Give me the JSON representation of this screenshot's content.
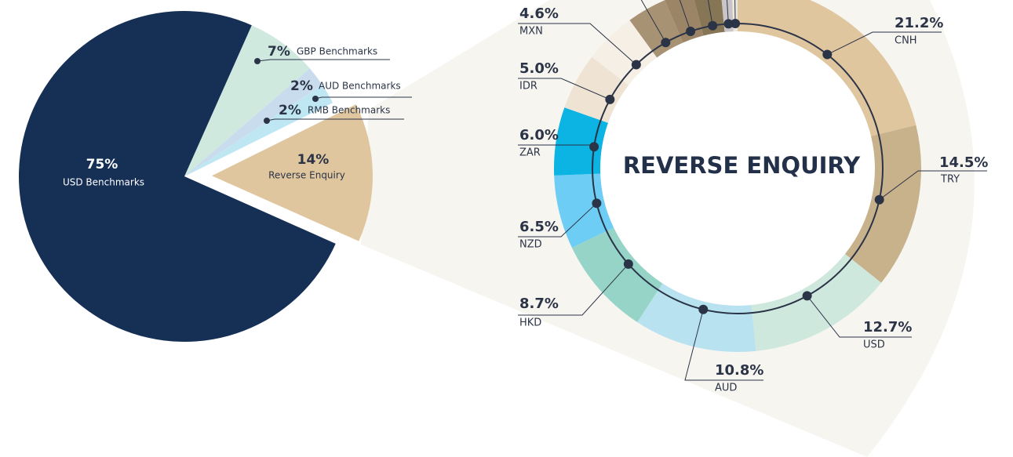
{
  "chart_data": [
    {
      "type": "pie",
      "categories": [
        "USD Benchmarks",
        "GBP Benchmarks",
        "AUD Benchmarks",
        "RMB Benchmarks",
        "Reverse Enquiry"
      ],
      "values": [
        75,
        7,
        2,
        2,
        14
      ],
      "value_labels": [
        "75%",
        "7%",
        "2%",
        "2%",
        "14%"
      ],
      "colors": [
        "#152f55",
        "#cfe9df",
        "#c9dcee",
        "#bfe6f3",
        "#dfc69f"
      ]
    },
    {
      "type": "donut",
      "title": "REVERSE ENQUIRY",
      "categories": [
        "CNH",
        "TRY",
        "USD",
        "AUD",
        "HKD",
        "NZD",
        "ZAR",
        "IDR",
        "MXN",
        null,
        null,
        null,
        null,
        null
      ],
      "values": [
        21.2,
        14.5,
        12.7,
        10.8,
        8.7,
        6.5,
        6.0,
        5.0,
        4.6,
        3.5,
        2.5,
        2.5,
        1.0,
        0.5
      ],
      "value_labels": [
        "21.2%",
        "14.5%",
        "12.7%",
        "10.8%",
        "8.7%",
        "6.5%",
        "6.0%",
        "5.0%",
        "4.6%",
        null,
        null,
        null,
        null,
        null
      ],
      "colors": [
        "#dfc69f",
        "#c8b28c",
        "#cfe8de",
        "#b8e2f0",
        "#96d4c8",
        "#6ecdf4",
        "#0bb4e3",
        "#efe4d3",
        "#f6efe6",
        "#a89274",
        "#9b8566",
        "#867656",
        "#c9c4c8",
        "#ece6dc"
      ]
    }
  ]
}
